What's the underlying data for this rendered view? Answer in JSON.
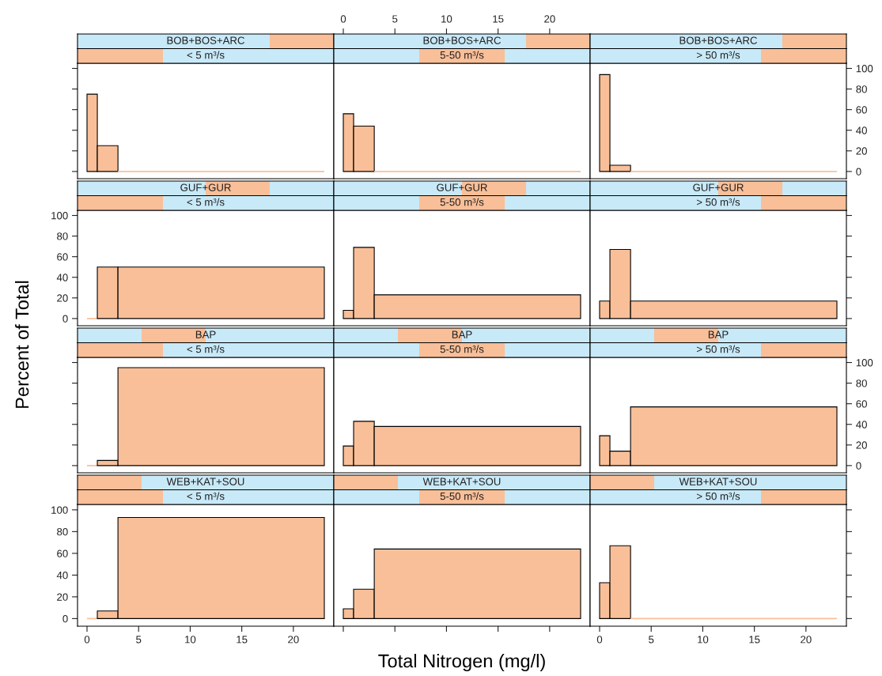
{
  "chart_data": [
    {
      "type": "histogram",
      "title": "BOB+BOS+ARC",
      "subtitle": "< 5 m³/s",
      "bins": [
        0,
        1,
        3,
        23
      ],
      "values": [
        75,
        25,
        0
      ],
      "color": "#f9bf98",
      "xlim": [
        -0.92,
        23.92
      ],
      "xticks": [
        0,
        5,
        10,
        15,
        20
      ],
      "ylim": [
        -7,
        105
      ],
      "yticks": [
        0,
        20,
        40,
        60,
        80,
        100
      ],
      "tick_labels": false
    },
    {
      "type": "histogram",
      "title": "BOB+BOS+ARC",
      "subtitle": "5-50 m³/s",
      "bins": [
        0,
        1,
        3,
        23
      ],
      "values": [
        56,
        44,
        0
      ],
      "color": "#f9bf98",
      "xlim": [
        -0.92,
        23.92
      ],
      "xticks": [
        0,
        5,
        10,
        15,
        20
      ],
      "ylim": [
        -7,
        105
      ],
      "yticks": [
        0,
        20,
        40,
        60,
        80,
        100
      ],
      "tick_labels": "x"
    },
    {
      "type": "histogram",
      "title": "BOB+BOS+ARC",
      "subtitle": "> 50 m³/s",
      "bins": [
        0,
        1,
        3,
        23
      ],
      "values": [
        94,
        6,
        0
      ],
      "color": "#f9bf98",
      "xlim": [
        -0.92,
        23.92
      ],
      "xticks": [
        0,
        5,
        10,
        15,
        20
      ],
      "ylim": [
        -7,
        105
      ],
      "yticks": [
        0,
        20,
        40,
        60,
        80,
        100
      ],
      "tick_labels": "y"
    },
    {
      "type": "histogram",
      "title": "GUF+GUR",
      "subtitle": "< 5 m³/s",
      "bins": [
        0,
        1,
        3,
        23
      ],
      "values": [
        0,
        50,
        50
      ],
      "color": "#f9bf98",
      "xlim": [
        -0.92,
        23.92
      ],
      "xticks": [
        0,
        5,
        10,
        15,
        20
      ],
      "ylim": [
        -7,
        105
      ],
      "yticks": [
        0,
        20,
        40,
        60,
        80,
        100
      ],
      "tick_labels": "y",
      "ylabel": "Percent of Total"
    },
    {
      "type": "histogram",
      "title": "GUF+GUR",
      "subtitle": "5-50 m³/s",
      "bins": [
        0,
        1,
        3,
        23
      ],
      "values": [
        8,
        69,
        23
      ],
      "color": "#f9bf98",
      "xlim": [
        -0.92,
        23.92
      ],
      "xticks": [
        0,
        5,
        10,
        15,
        20
      ],
      "ylim": [
        -7,
        105
      ],
      "yticks": [
        0,
        20,
        40,
        60,
        80,
        100
      ],
      "tick_labels": false
    },
    {
      "type": "histogram",
      "title": "GUF+GUR",
      "subtitle": "> 50 m³/s",
      "bins": [
        0,
        1,
        3,
        23
      ],
      "values": [
        17,
        67,
        17
      ],
      "color": "#f9bf98",
      "xlim": [
        -0.92,
        23.92
      ],
      "xticks": [
        0,
        5,
        10,
        15,
        20
      ],
      "ylim": [
        -7,
        105
      ],
      "yticks": [
        0,
        20,
        40,
        60,
        80,
        100
      ],
      "tick_labels": false
    },
    {
      "type": "histogram",
      "title": "BAP",
      "subtitle": "< 5 m³/s",
      "bins": [
        0,
        1,
        3,
        23
      ],
      "values": [
        0,
        5,
        95
      ],
      "color": "#f9bf98",
      "xlim": [
        -0.92,
        23.92
      ],
      "xticks": [
        0,
        5,
        10,
        15,
        20
      ],
      "ylim": [
        -7,
        105
      ],
      "yticks": [
        0,
        20,
        40,
        60,
        80,
        100
      ],
      "tick_labels": false
    },
    {
      "type": "histogram",
      "title": "BAP",
      "subtitle": "5-50 m³/s",
      "bins": [
        0,
        1,
        3,
        23
      ],
      "values": [
        19,
        43,
        38
      ],
      "color": "#f9bf98",
      "xlim": [
        -0.92,
        23.92
      ],
      "xticks": [
        0,
        5,
        10,
        15,
        20
      ],
      "ylim": [
        -7,
        105
      ],
      "yticks": [
        0,
        20,
        40,
        60,
        80,
        100
      ],
      "tick_labels": false
    },
    {
      "type": "histogram",
      "title": "BAP",
      "subtitle": "> 50 m³/s",
      "bins": [
        0,
        1,
        3,
        23
      ],
      "values": [
        29,
        14,
        57
      ],
      "color": "#f9bf98",
      "xlim": [
        -0.92,
        23.92
      ],
      "xticks": [
        0,
        5,
        10,
        15,
        20
      ],
      "ylim": [
        -7,
        105
      ],
      "yticks": [
        0,
        20,
        40,
        60,
        80,
        100
      ],
      "tick_labels": "y"
    },
    {
      "type": "histogram",
      "title": "WEB+KAT+SOU",
      "subtitle": "< 5 m³/s",
      "bins": [
        0,
        1,
        3,
        23
      ],
      "values": [
        0,
        7,
        93
      ],
      "color": "#f9bf98",
      "xlim": [
        -0.92,
        23.92
      ],
      "xticks": [
        0,
        5,
        10,
        15,
        20
      ],
      "ylim": [
        -7,
        105
      ],
      "yticks": [
        0,
        20,
        40,
        60,
        80,
        100
      ]
    },
    {
      "type": "histogram",
      "title": "WEB+KAT+SOU",
      "subtitle": "5-50 m³/s",
      "bins": [
        0,
        1,
        3,
        23
      ],
      "values": [
        9,
        27,
        64
      ],
      "color": "#f9bf98",
      "xlim": [
        -0.92,
        23.92
      ],
      "xticks": [
        0,
        5,
        10,
        15,
        20
      ],
      "ylim": [
        -7,
        105
      ],
      "yticks": [
        0,
        20,
        40,
        60,
        80,
        100
      ],
      "tick_labels": false,
      "xlabel": "Total Nitrogen (mg/l)"
    },
    {
      "type": "histogram",
      "title": "WEB+KAT+SOU",
      "subtitle": "> 50 m³/s",
      "bins": [
        0,
        1,
        3,
        23
      ],
      "values": [
        33,
        67,
        0
      ],
      "color": "#f9bf98",
      "xlim": [
        -0.92,
        23.92
      ],
      "xticks": [
        0,
        5,
        10,
        15,
        20
      ],
      "ylim": [
        -7,
        105
      ],
      "yticks": [
        0,
        20,
        40,
        60,
        80,
        100
      ],
      "tick_labels": "x"
    }
  ]
}
